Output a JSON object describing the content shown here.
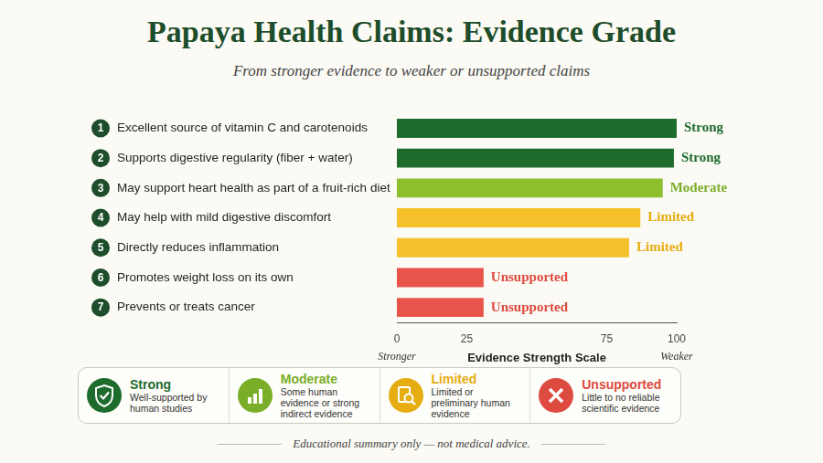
{
  "chart_data": {
    "type": "bar",
    "orientation": "horizontal",
    "title": "Papaya Health Claims: Evidence Grade",
    "subtitle": "From stronger evidence to weaker or unsupported claims",
    "item_numbers": [
      1,
      2,
      3,
      4,
      5,
      6,
      7
    ],
    "categories": [
      "Excellent source of vitamin C and carotenoids",
      "Supports digestive regularity (fiber + water)",
      "May support heart health as part of a fruit-rich diet",
      "May help with mild digestive discomfort",
      "Directly reduces inflammation",
      "Promotes weight loss on its own",
      "Prevents or treats cancer"
    ],
    "values": [
      100,
      99,
      95,
      87,
      83,
      31,
      31
    ],
    "colors": [
      "#1e6b2e",
      "#1e6b2e",
      "#8dbf2e",
      "#f5c12a",
      "#f5c12a",
      "#e8544a",
      "#e8544a"
    ],
    "grades": [
      "Strong",
      "Strong",
      "Moderate",
      "Limited",
      "Limited",
      "Unsupported",
      "Unsupported"
    ],
    "xlabel": "Evidence Strength Scale",
    "x_end_labels": [
      "Stronger",
      "Weaker"
    ],
    "xlim": [
      0,
      100
    ],
    "xticks": [
      0,
      25,
      75,
      100
    ],
    "grid": false,
    "grade_key": [
      {
        "name": "Strong",
        "description": "Well-supported by human studies",
        "color": "#1e6b2e"
      },
      {
        "name": "Moderate",
        "description": "Some human evidence or strong indirect evidence",
        "color": "#7aad28"
      },
      {
        "name": "Limited",
        "description": "Limited or preliminary human evidence",
        "color": "#e5ad12"
      },
      {
        "name": "Unsupported",
        "description": "Little to no reliable scientific evidence",
        "color": "#dd4a40"
      }
    ],
    "footer": "Educational summary only — not medical advice."
  }
}
